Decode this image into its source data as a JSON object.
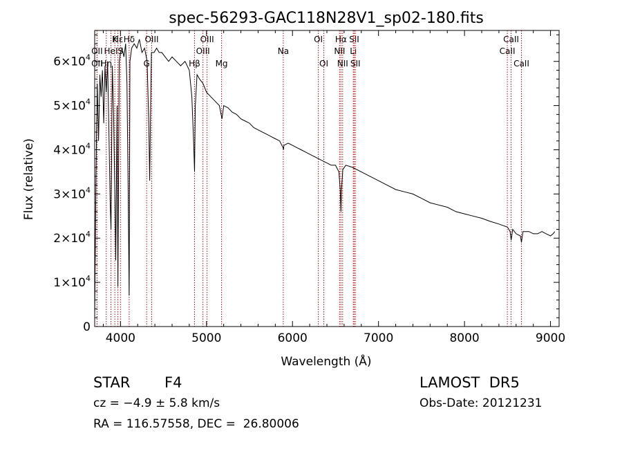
{
  "chart_data": {
    "type": "line",
    "title": "spec-56293-GAC118N28V1_sp02-180.fits",
    "xlabel": "Wavelength (Å)",
    "ylabel": "Flux (relative)",
    "xlim": [
      3700,
      9100
    ],
    "ylim": [
      0,
      67000
    ],
    "x_ticks": [
      4000,
      5000,
      6000,
      7000,
      8000,
      9000
    ],
    "x_tick_labels": [
      "4000",
      "5000",
      "6000",
      "7000",
      "8000",
      "9000"
    ],
    "y_ticks": [
      0,
      10000,
      20000,
      30000,
      40000,
      50000,
      60000
    ],
    "y_tick_labels": [
      {
        "mantissa": "0",
        "exp": ""
      },
      {
        "mantissa": "1×10",
        "exp": "4"
      },
      {
        "mantissa": "2×10",
        "exp": "4"
      },
      {
        "mantissa": "3×10",
        "exp": "4"
      },
      {
        "mantissa": "4×10",
        "exp": "4"
      },
      {
        "mantissa": "5×10",
        "exp": "4"
      },
      {
        "mantissa": "6×10",
        "exp": "4"
      }
    ],
    "grid": false,
    "line_color": "#000000",
    "line_marker_color": "#cc0000",
    "series": [
      {
        "x": [
          3700,
          3715,
          3730,
          3745,
          3760,
          3775,
          3790,
          3805,
          3820,
          3835,
          3850,
          3865,
          3880,
          3890,
          3905,
          3920,
          3935,
          3945,
          3960,
          3970,
          3985,
          4000,
          4020,
          4040,
          4060,
          4075,
          4090,
          4101,
          4110,
          4130,
          4160,
          4190,
          4220,
          4250,
          4280,
          4310,
          4330,
          4340,
          4350,
          4360,
          4390,
          4420,
          4450,
          4480,
          4520,
          4560,
          4600,
          4650,
          4700,
          4750,
          4800,
          4830,
          4850,
          4861,
          4870,
          4890,
          4920,
          4960,
          5000,
          5050,
          5100,
          5150,
          5180,
          5200,
          5250,
          5300,
          5350,
          5400,
          5450,
          5500,
          5550,
          5600,
          5650,
          5700,
          5750,
          5800,
          5850,
          5890,
          5895,
          5900,
          5950,
          6000,
          6050,
          6100,
          6150,
          6200,
          6250,
          6300,
          6350,
          6400,
          6450,
          6500,
          6540,
          6555,
          6563,
          6570,
          6585,
          6620,
          6700,
          6800,
          6900,
          7000,
          7100,
          7200,
          7300,
          7400,
          7500,
          7600,
          7700,
          7800,
          7900,
          8000,
          8100,
          8200,
          8300,
          8400,
          8500,
          8530,
          8542,
          8560,
          8600,
          8650,
          8662,
          8680,
          8750,
          8800,
          8850,
          8900,
          8950,
          9000,
          9030,
          9050
        ],
        "y": [
          2000,
          34000,
          55000,
          42000,
          57000,
          52000,
          58000,
          46000,
          59000,
          53000,
          60000,
          45000,
          28000,
          22000,
          59000,
          48000,
          30000,
          15000,
          50000,
          9000,
          60000,
          62000,
          63000,
          61000,
          64000,
          55000,
          30000,
          7000,
          60000,
          63000,
          64000,
          63000,
          65000,
          62000,
          63000,
          60000,
          45000,
          33000,
          50000,
          62000,
          62000,
          63000,
          62000,
          62000,
          61000,
          60000,
          61000,
          60000,
          59000,
          60000,
          58000,
          52000,
          42000,
          35000,
          50000,
          57000,
          56000,
          55000,
          53000,
          52000,
          51000,
          50000,
          47000,
          50000,
          49500,
          48500,
          48000,
          47000,
          46500,
          46000,
          45000,
          44500,
          44000,
          43500,
          43000,
          42500,
          42000,
          40500,
          40000,
          41000,
          41500,
          41000,
          40500,
          40000,
          39500,
          39000,
          38500,
          38000,
          37500,
          37000,
          36500,
          36500,
          35000,
          31000,
          26000,
          31000,
          35500,
          36500,
          36000,
          35000,
          34000,
          33000,
          32000,
          31000,
          30500,
          30000,
          29000,
          28000,
          27500,
          27000,
          26000,
          25500,
          25000,
          24500,
          23800,
          23200,
          22500,
          21500,
          19500,
          22000,
          21000,
          20500,
          19000,
          21500,
          21500,
          21000,
          21000,
          21500,
          21000,
          20500,
          21000,
          21500
        ]
      }
    ],
    "line_markers": [
      {
        "label": "Hδ",
        "x": 4101,
        "row": 1
      },
      {
        "label": "K",
        "x": 3934,
        "row": 1
      },
      {
        "label": "Hε",
        "x": 3970,
        "row": 1
      },
      {
        "label": "OII",
        "x": 3727,
        "row": 2
      },
      {
        "label": "HeI",
        "x": 3889,
        "row": 2
      },
      {
        "label": "S",
        "x": 4000,
        "row": 2
      },
      {
        "label": "OII",
        "x": 3727,
        "row": 3
      },
      {
        "label": "Hη",
        "x": 3835,
        "row": 3
      },
      {
        "label": "OIII",
        "x": 4363,
        "row": 1
      },
      {
        "label": "G",
        "x": 4304,
        "row": 3
      },
      {
        "label": "OIII",
        "x": 5007,
        "row": 1
      },
      {
        "label": "OIII",
        "x": 4959,
        "row": 2
      },
      {
        "label": "Hβ",
        "x": 4861,
        "row": 3
      },
      {
        "label": "Mg",
        "x": 5175,
        "row": 3
      },
      {
        "label": "Na",
        "x": 5893,
        "row": 2
      },
      {
        "label": "OI",
        "x": 6300,
        "row": 1
      },
      {
        "label": "OI",
        "x": 6364,
        "row": 3
      },
      {
        "label": "Hα",
        "x": 6563,
        "row": 1
      },
      {
        "label": "NII",
        "x": 6548,
        "row": 2
      },
      {
        "label": "NII",
        "x": 6583,
        "row": 3
      },
      {
        "label": "SII",
        "x": 6717,
        "row": 1
      },
      {
        "label": "Li",
        "x": 6707,
        "row": 2
      },
      {
        "label": "SII",
        "x": 6731,
        "row": 3
      },
      {
        "label": "CaII",
        "x": 8542,
        "row": 1
      },
      {
        "label": "CaII",
        "x": 8498,
        "row": 2
      },
      {
        "label": "CaII",
        "x": 8662,
        "row": 3
      }
    ]
  },
  "info": {
    "class_label": "STAR",
    "subclass": "F4",
    "survey": "LAMOST  DR5",
    "cz_text": "cz = −4.9 ± 5.8 km/s",
    "obs_date": "Obs-Date: 20121231",
    "radec": "RA = 116.57558, DEC =  26.80006"
  }
}
